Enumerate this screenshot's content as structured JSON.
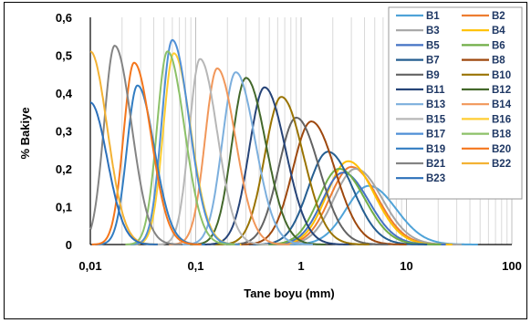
{
  "chart_data": {
    "type": "line",
    "title": "",
    "xlabel": "Tane boyu (mm)",
    "ylabel": "% Bakiye",
    "x_scale": "log",
    "xlim": [
      0.01,
      100
    ],
    "ylim": [
      0,
      0.6
    ],
    "x_ticks": [
      "0,01",
      "0,1",
      "1",
      "10",
      "100"
    ],
    "y_ticks": [
      "0",
      "0,1",
      "0,2",
      "0,3",
      "0,4",
      "0,5",
      "0,6"
    ],
    "grid": "vertical minor log grid",
    "legend_position": "top-right",
    "series": [
      {
        "name": "B1",
        "color": "#4fa3d8",
        "peak_x": 4.4,
        "peak_y": 0.155
      },
      {
        "name": "B2",
        "color": "#ed7d31",
        "peak_x": 3.0,
        "peak_y": 0.205
      },
      {
        "name": "B3",
        "color": "#a5a5a5",
        "peak_x": 3.3,
        "peak_y": 0.2
      },
      {
        "name": "B4",
        "color": "#ffc000",
        "peak_x": 2.8,
        "peak_y": 0.22
      },
      {
        "name": "B5",
        "color": "#4472c4",
        "peak_x": 2.5,
        "peak_y": 0.19
      },
      {
        "name": "B6",
        "color": "#70ad47",
        "peak_x": 2.3,
        "peak_y": 0.2
      },
      {
        "name": "B7",
        "color": "#255e91",
        "peak_x": 1.8,
        "peak_y": 0.245
      },
      {
        "name": "B8",
        "color": "#9e480e",
        "peak_x": 1.25,
        "peak_y": 0.325
      },
      {
        "name": "B9",
        "color": "#636363",
        "peak_x": 0.9,
        "peak_y": 0.335
      },
      {
        "name": "B10",
        "color": "#997300",
        "peak_x": 0.65,
        "peak_y": 0.39
      },
      {
        "name": "B11",
        "color": "#264478",
        "peak_x": 0.45,
        "peak_y": 0.415
      },
      {
        "name": "B12",
        "color": "#43682b",
        "peak_x": 0.3,
        "peak_y": 0.44
      },
      {
        "name": "B13",
        "color": "#7cafdd",
        "peak_x": 0.24,
        "peak_y": 0.455
      },
      {
        "name": "B14",
        "color": "#f1975a",
        "peak_x": 0.16,
        "peak_y": 0.465
      },
      {
        "name": "B15",
        "color": "#b7b7b7",
        "peak_x": 0.11,
        "peak_y": 0.49
      },
      {
        "name": "B16",
        "color": "#ffcd33",
        "peak_x": 0.062,
        "peak_y": 0.505
      },
      {
        "name": "B17",
        "color": "#4f8fd6",
        "peak_x": 0.06,
        "peak_y": 0.54
      },
      {
        "name": "B18",
        "color": "#8cc168",
        "peak_x": 0.054,
        "peak_y": 0.51
      },
      {
        "name": "B19",
        "color": "#327dc2",
        "peak_x": 0.028,
        "peak_y": 0.42
      },
      {
        "name": "B20",
        "color": "#f4761c",
        "peak_x": 0.026,
        "peak_y": 0.48
      },
      {
        "name": "B21",
        "color": "#848484",
        "peak_x": 0.017,
        "peak_y": 0.525
      },
      {
        "name": "B22",
        "color": "#f3b234",
        "peak_x": 0.01,
        "peak_y": 0.51
      },
      {
        "name": "B23",
        "color": "#2c70ba",
        "peak_x": 0.01,
        "peak_y": 0.375
      }
    ]
  }
}
